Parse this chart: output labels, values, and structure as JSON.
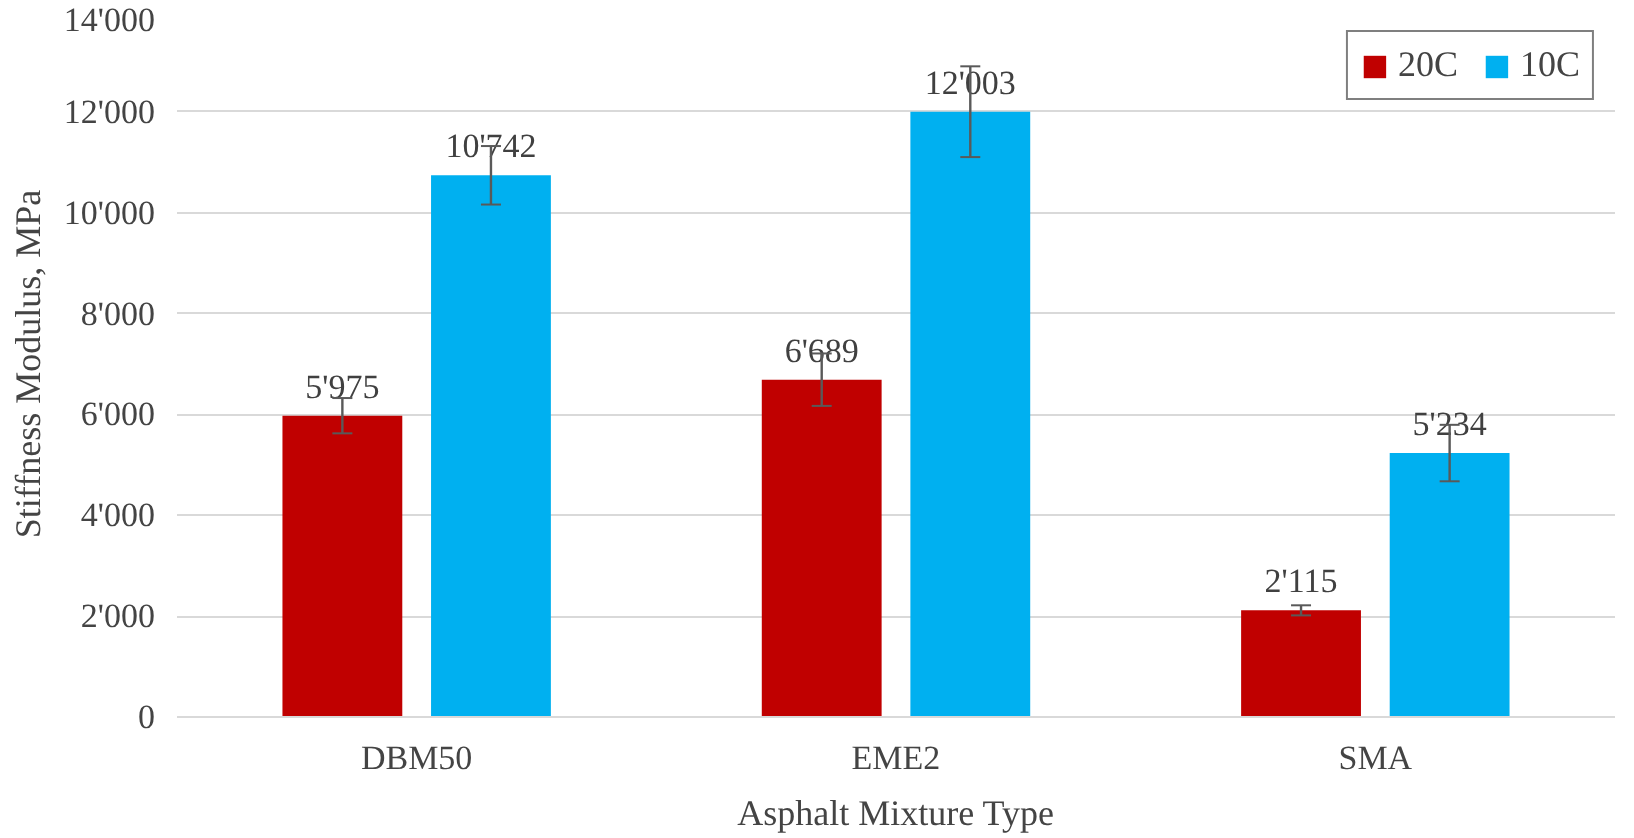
{
  "chart_data": {
    "type": "bar",
    "xlabel": "Asphalt Mixture Type",
    "ylabel": "Stiffness Modulus, MPa",
    "categories": [
      "DBM50",
      "EME2",
      "SMA"
    ],
    "series": [
      {
        "name": "20C",
        "color": "#c00000",
        "values": [
          5975,
          6689,
          2115
        ],
        "errors": [
          350,
          520,
          100
        ],
        "value_labels": [
          "5'975",
          "6'689",
          "2'115"
        ]
      },
      {
        "name": "10C",
        "color": "#00b0f0",
        "values": [
          10742,
          12003,
          5234
        ],
        "errors": [
          580,
          900,
          560
        ],
        "value_labels": [
          "10'742",
          "12'003",
          "5'234"
        ]
      }
    ],
    "ylim": [
      0,
      14000
    ],
    "yticks": [
      0,
      {
        "value": 2000,
        "label": "2'000"
      },
      {
        "value": 4000,
        "label": "4'000"
      },
      {
        "value": 6000,
        "label": "6'000"
      },
      {
        "value": 8000,
        "label": "8'000"
      },
      {
        "value": 10000,
        "label": "10'000"
      },
      {
        "value": 12000,
        "label": "12'000"
      },
      {
        "value": 14000,
        "label": "14'000"
      }
    ],
    "grid": "y",
    "legend": "top right"
  }
}
